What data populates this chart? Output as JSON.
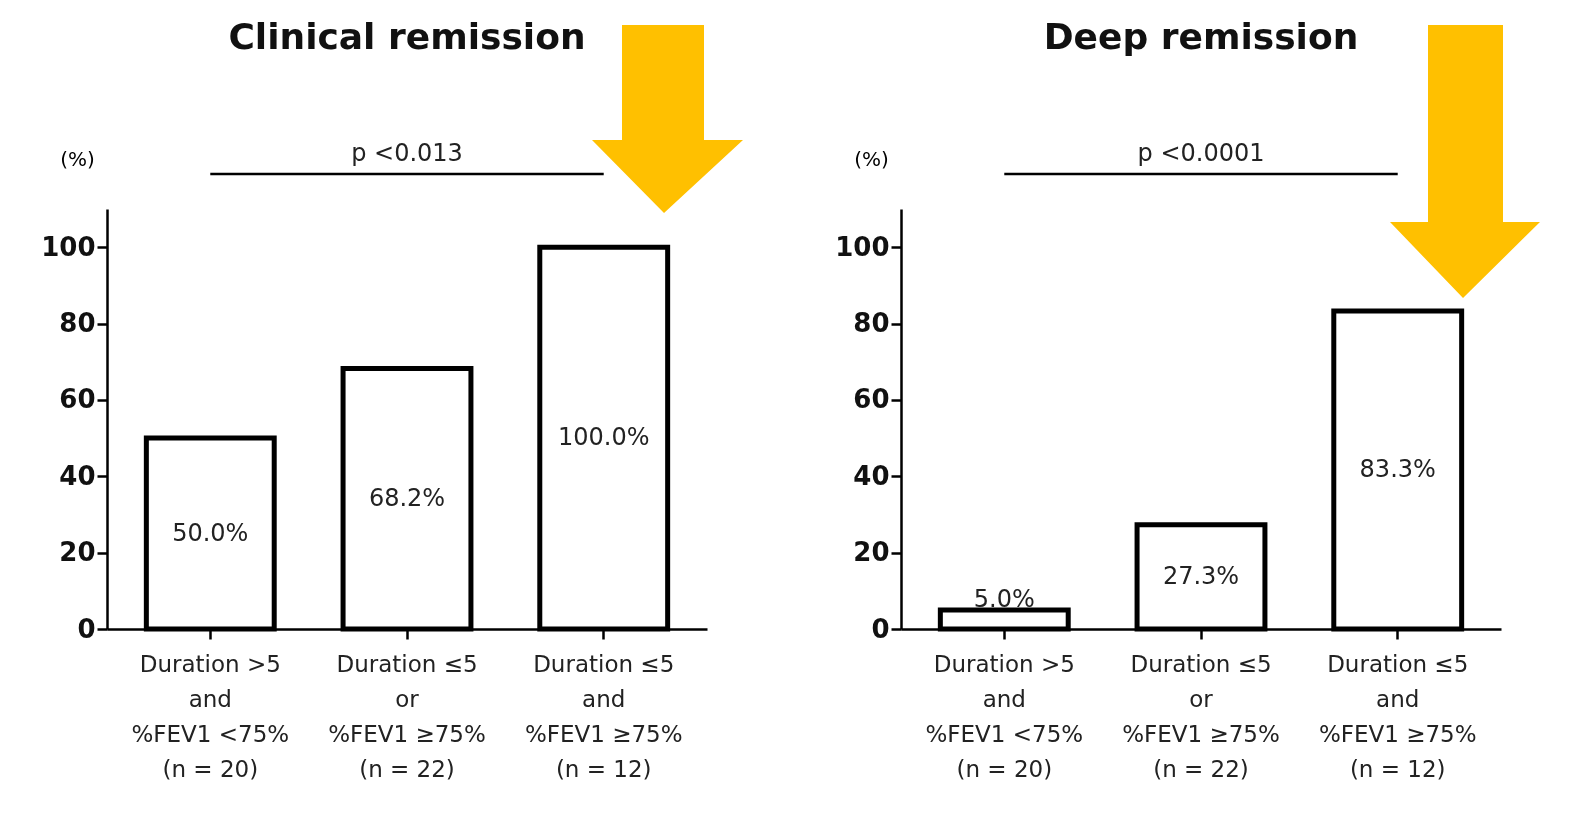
{
  "chart_data": [
    {
      "type": "bar",
      "title": "Clinical remission",
      "ylabel": "(%)",
      "categories": [
        "Duration >5\nand\n%FEV1 <75%\n(n = 20)",
        "Duration ≤5\nor\n%FEV1 ≥75%\n(n = 22)",
        "Duration ≤5\nand\n%FEV1 ≥75%\n(n = 12)"
      ],
      "values": [
        50.0,
        68.2,
        100.0
      ],
      "value_labels": [
        "50.0%",
        "68.2%",
        "100.0%"
      ],
      "color": "#ffffff",
      "ylim": [
        0,
        110
      ],
      "yticks": [
        0,
        20,
        40,
        60,
        80,
        100
      ],
      "grid": false,
      "annotations": [
        "p <0.013"
      ]
    },
    {
      "type": "bar",
      "title": "Deep remission",
      "ylabel": "(%)",
      "categories": [
        "Duration >5\nand\n%FEV1 <75%\n(n = 20)",
        "Duration ≤5\nor\n%FEV1 ≥75%\n(n = 22)",
        "Duration ≤5\nand\n%FEV1 ≥75%\n(n = 12)"
      ],
      "values": [
        5.0,
        27.3,
        83.3
      ],
      "value_labels": [
        "5.0%",
        "27.3%",
        "83.3%"
      ],
      "color": "#ffffff",
      "ylim": [
        0,
        110
      ],
      "yticks": [
        0,
        20,
        40,
        60,
        80,
        100
      ],
      "grid": false,
      "annotations": [
        "p <0.0001"
      ]
    }
  ]
}
